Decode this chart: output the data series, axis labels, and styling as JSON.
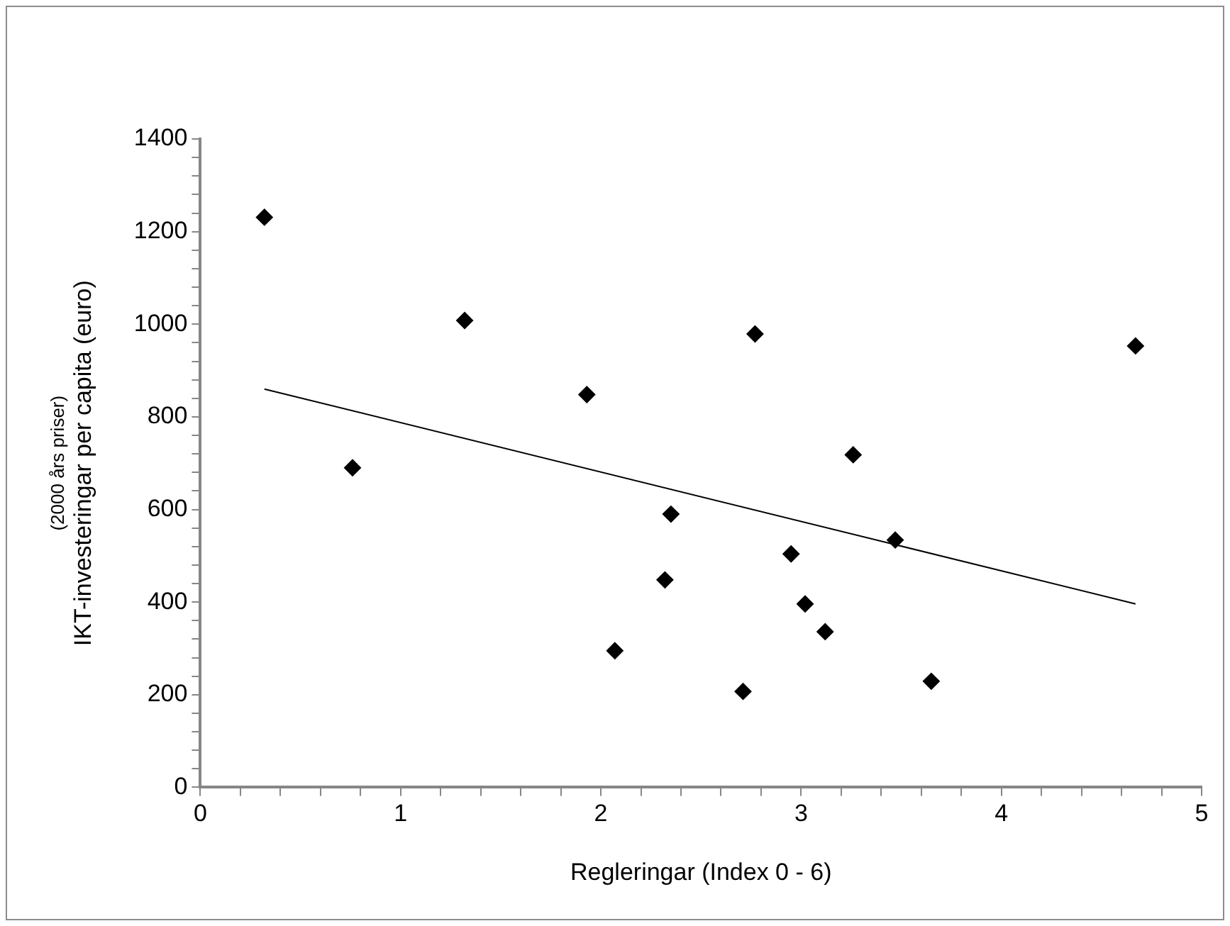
{
  "chart_data": {
    "type": "scatter",
    "xlabel": "Regleringar (Index 0 - 6)",
    "ylabel": "IKT-investeringar per capita (euro)",
    "annotations": [
      "(2000 års priser)"
    ],
    "xlim": [
      0,
      5
    ],
    "ylim": [
      0,
      1400
    ],
    "marker": "diamond",
    "xticks": [
      0,
      {
        "value": 0.2,
        "label": null
      },
      {
        "value": 0.4,
        "label": null
      },
      {
        "value": 0.6,
        "label": null
      },
      {
        "value": 0.8,
        "label": null
      },
      1,
      {
        "value": 1.2,
        "label": null
      },
      {
        "value": 1.4,
        "label": null
      },
      {
        "value": 1.6,
        "label": null
      },
      {
        "value": 1.8,
        "label": null
      },
      2,
      {
        "value": 2.2,
        "label": null
      },
      {
        "value": 2.4,
        "label": null
      },
      {
        "value": 2.6,
        "label": null
      },
      {
        "value": 2.8,
        "label": null
      },
      3,
      {
        "value": 3.2,
        "label": null
      },
      {
        "value": 3.4,
        "label": null
      },
      {
        "value": 3.6,
        "label": null
      },
      {
        "value": 3.8,
        "label": null
      },
      4,
      {
        "value": 4.2,
        "label": null
      },
      {
        "value": 4.4,
        "label": null
      },
      {
        "value": 4.6,
        "label": null
      },
      {
        "value": 4.8,
        "label": null
      },
      5
    ],
    "yticks": [
      0,
      {
        "value": 40,
        "label": null
      },
      {
        "value": 80,
        "label": null
      },
      {
        "value": 120,
        "label": null
      },
      {
        "value": 160,
        "label": null
      },
      200,
      {
        "value": 240,
        "label": null
      },
      {
        "value": 280,
        "label": null
      },
      {
        "value": 320,
        "label": null
      },
      {
        "value": 360,
        "label": null
      },
      400,
      {
        "value": 440,
        "label": null
      },
      {
        "value": 480,
        "label": null
      },
      {
        "value": 520,
        "label": null
      },
      {
        "value": 560,
        "label": null
      },
      600,
      {
        "value": 640,
        "label": null
      },
      {
        "value": 680,
        "label": null
      },
      {
        "value": 720,
        "label": null
      },
      {
        "value": 760,
        "label": null
      },
      800,
      {
        "value": 840,
        "label": null
      },
      {
        "value": 880,
        "label": null
      },
      {
        "value": 920,
        "label": null
      },
      {
        "value": 960,
        "label": null
      },
      1000,
      {
        "value": 1040,
        "label": null
      },
      {
        "value": 1080,
        "label": null
      },
      {
        "value": 1120,
        "label": null
      },
      {
        "value": 1160,
        "label": null
      },
      1200,
      {
        "value": 1240,
        "label": null
      },
      {
        "value": 1280,
        "label": null
      },
      {
        "value": 1320,
        "label": null
      },
      {
        "value": 1360,
        "label": null
      },
      1400
    ],
    "series": [
      {
        "color": "#000000",
        "x": [
          0.32,
          0.76,
          1.32,
          1.93,
          2.35,
          2.32,
          2.07,
          2.77,
          4.67,
          3.26,
          3.47,
          2.95,
          3.02,
          3.12,
          2.71,
          3.65
        ],
        "values": [
          1231,
          690,
          1008,
          848,
          590,
          448,
          295,
          979,
          953,
          718,
          534,
          504,
          396,
          336,
          207,
          229
        ]
      },
      {
        "type": "line",
        "marker": "none",
        "color": "#000000",
        "x": [
          0.32,
          4.67
        ],
        "values": [
          860,
          396
        ]
      }
    ]
  }
}
